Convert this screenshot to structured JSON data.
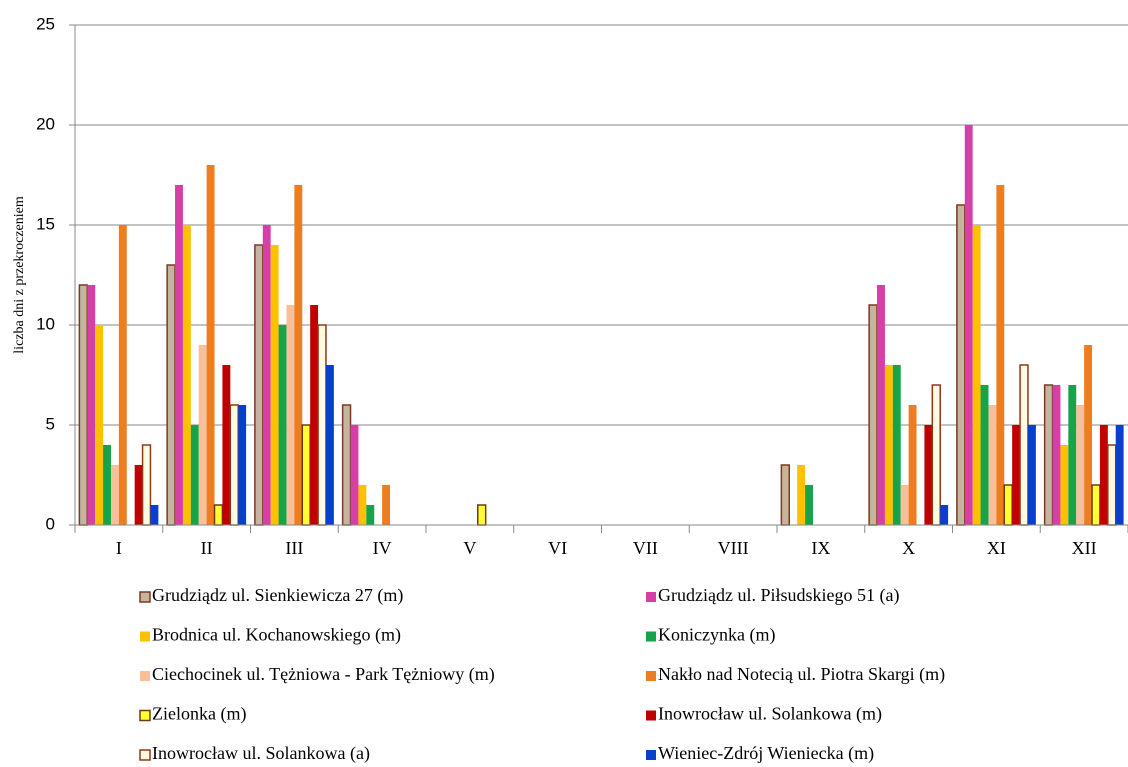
{
  "chart_data": {
    "type": "bar",
    "y_label": "liczba dni z przekroczeniem",
    "categories": [
      "I",
      "II",
      "III",
      "IV",
      "V",
      "VI",
      "VII",
      "VIII",
      "IX",
      "X",
      "XI",
      "XII"
    ],
    "ylim": [
      0,
      25
    ],
    "yticks": [
      0,
      5,
      10,
      15,
      20,
      25
    ],
    "grid": true,
    "series": [
      {
        "name": "Grudziądz ul. Sienkiewicza 27 (m)",
        "color": "#c4b59c",
        "edgecolor": "#7a3a22",
        "values": [
          12,
          13,
          14,
          6,
          0,
          0,
          0,
          0,
          3,
          11,
          16,
          7
        ]
      },
      {
        "name": "Grudziądz ul. Piłsudskiego 51 (a)",
        "color": "#d63fa6",
        "values": [
          12,
          17,
          15,
          5,
          0,
          0,
          0,
          0,
          0,
          12,
          20,
          7
        ]
      },
      {
        "name": "Brodnica ul. Kochanowskiego (m)",
        "color": "#ffc000",
        "values": [
          10,
          15,
          14,
          2,
          0,
          0,
          0,
          0,
          3,
          8,
          15,
          4
        ]
      },
      {
        "name": "Koniczynka  (m)",
        "color": "#16a34a",
        "values": [
          4,
          5,
          10,
          1,
          0,
          0,
          0,
          0,
          2,
          8,
          7,
          7
        ]
      },
      {
        "name": "Ciechocinek ul. Tężniowa - Park Tężniowy (m)",
        "color": "#f8c09a",
        "values": [
          3,
          9,
          11,
          0,
          0,
          0,
          0,
          0,
          0,
          2,
          6,
          6
        ]
      },
      {
        "name": "Nakło nad Notecią ul. Piotra Skargi (m)",
        "color": "#ed7d1f",
        "values": [
          15,
          18,
          17,
          2,
          0,
          0,
          0,
          0,
          0,
          6,
          17,
          9
        ]
      },
      {
        "name": "Zielonka (m)",
        "color": "#ffff33",
        "edgecolor": "#6b3a10",
        "values": [
          0,
          1,
          5,
          0,
          1,
          0,
          0,
          0,
          0,
          0,
          2,
          2
        ]
      },
      {
        "name": "Inowrocław ul. Solankowa (m)",
        "color": "#c00000",
        "values": [
          3,
          8,
          11,
          0,
          0,
          0,
          0,
          0,
          0,
          5,
          5,
          5
        ]
      },
      {
        "name": "Inowrocław ul. Solankowa (a)",
        "color": "#fffbe0",
        "edgecolor": "#8b3a1a",
        "values": [
          4,
          6,
          10,
          0,
          0,
          0,
          0,
          0,
          0,
          7,
          8,
          4
        ]
      },
      {
        "name": "Wieniec-Zdrój Wieniecka (m)",
        "color": "#0a3fcc",
        "values": [
          1,
          6,
          8,
          0,
          0,
          0,
          0,
          0,
          0,
          1,
          5,
          5
        ]
      }
    ]
  }
}
